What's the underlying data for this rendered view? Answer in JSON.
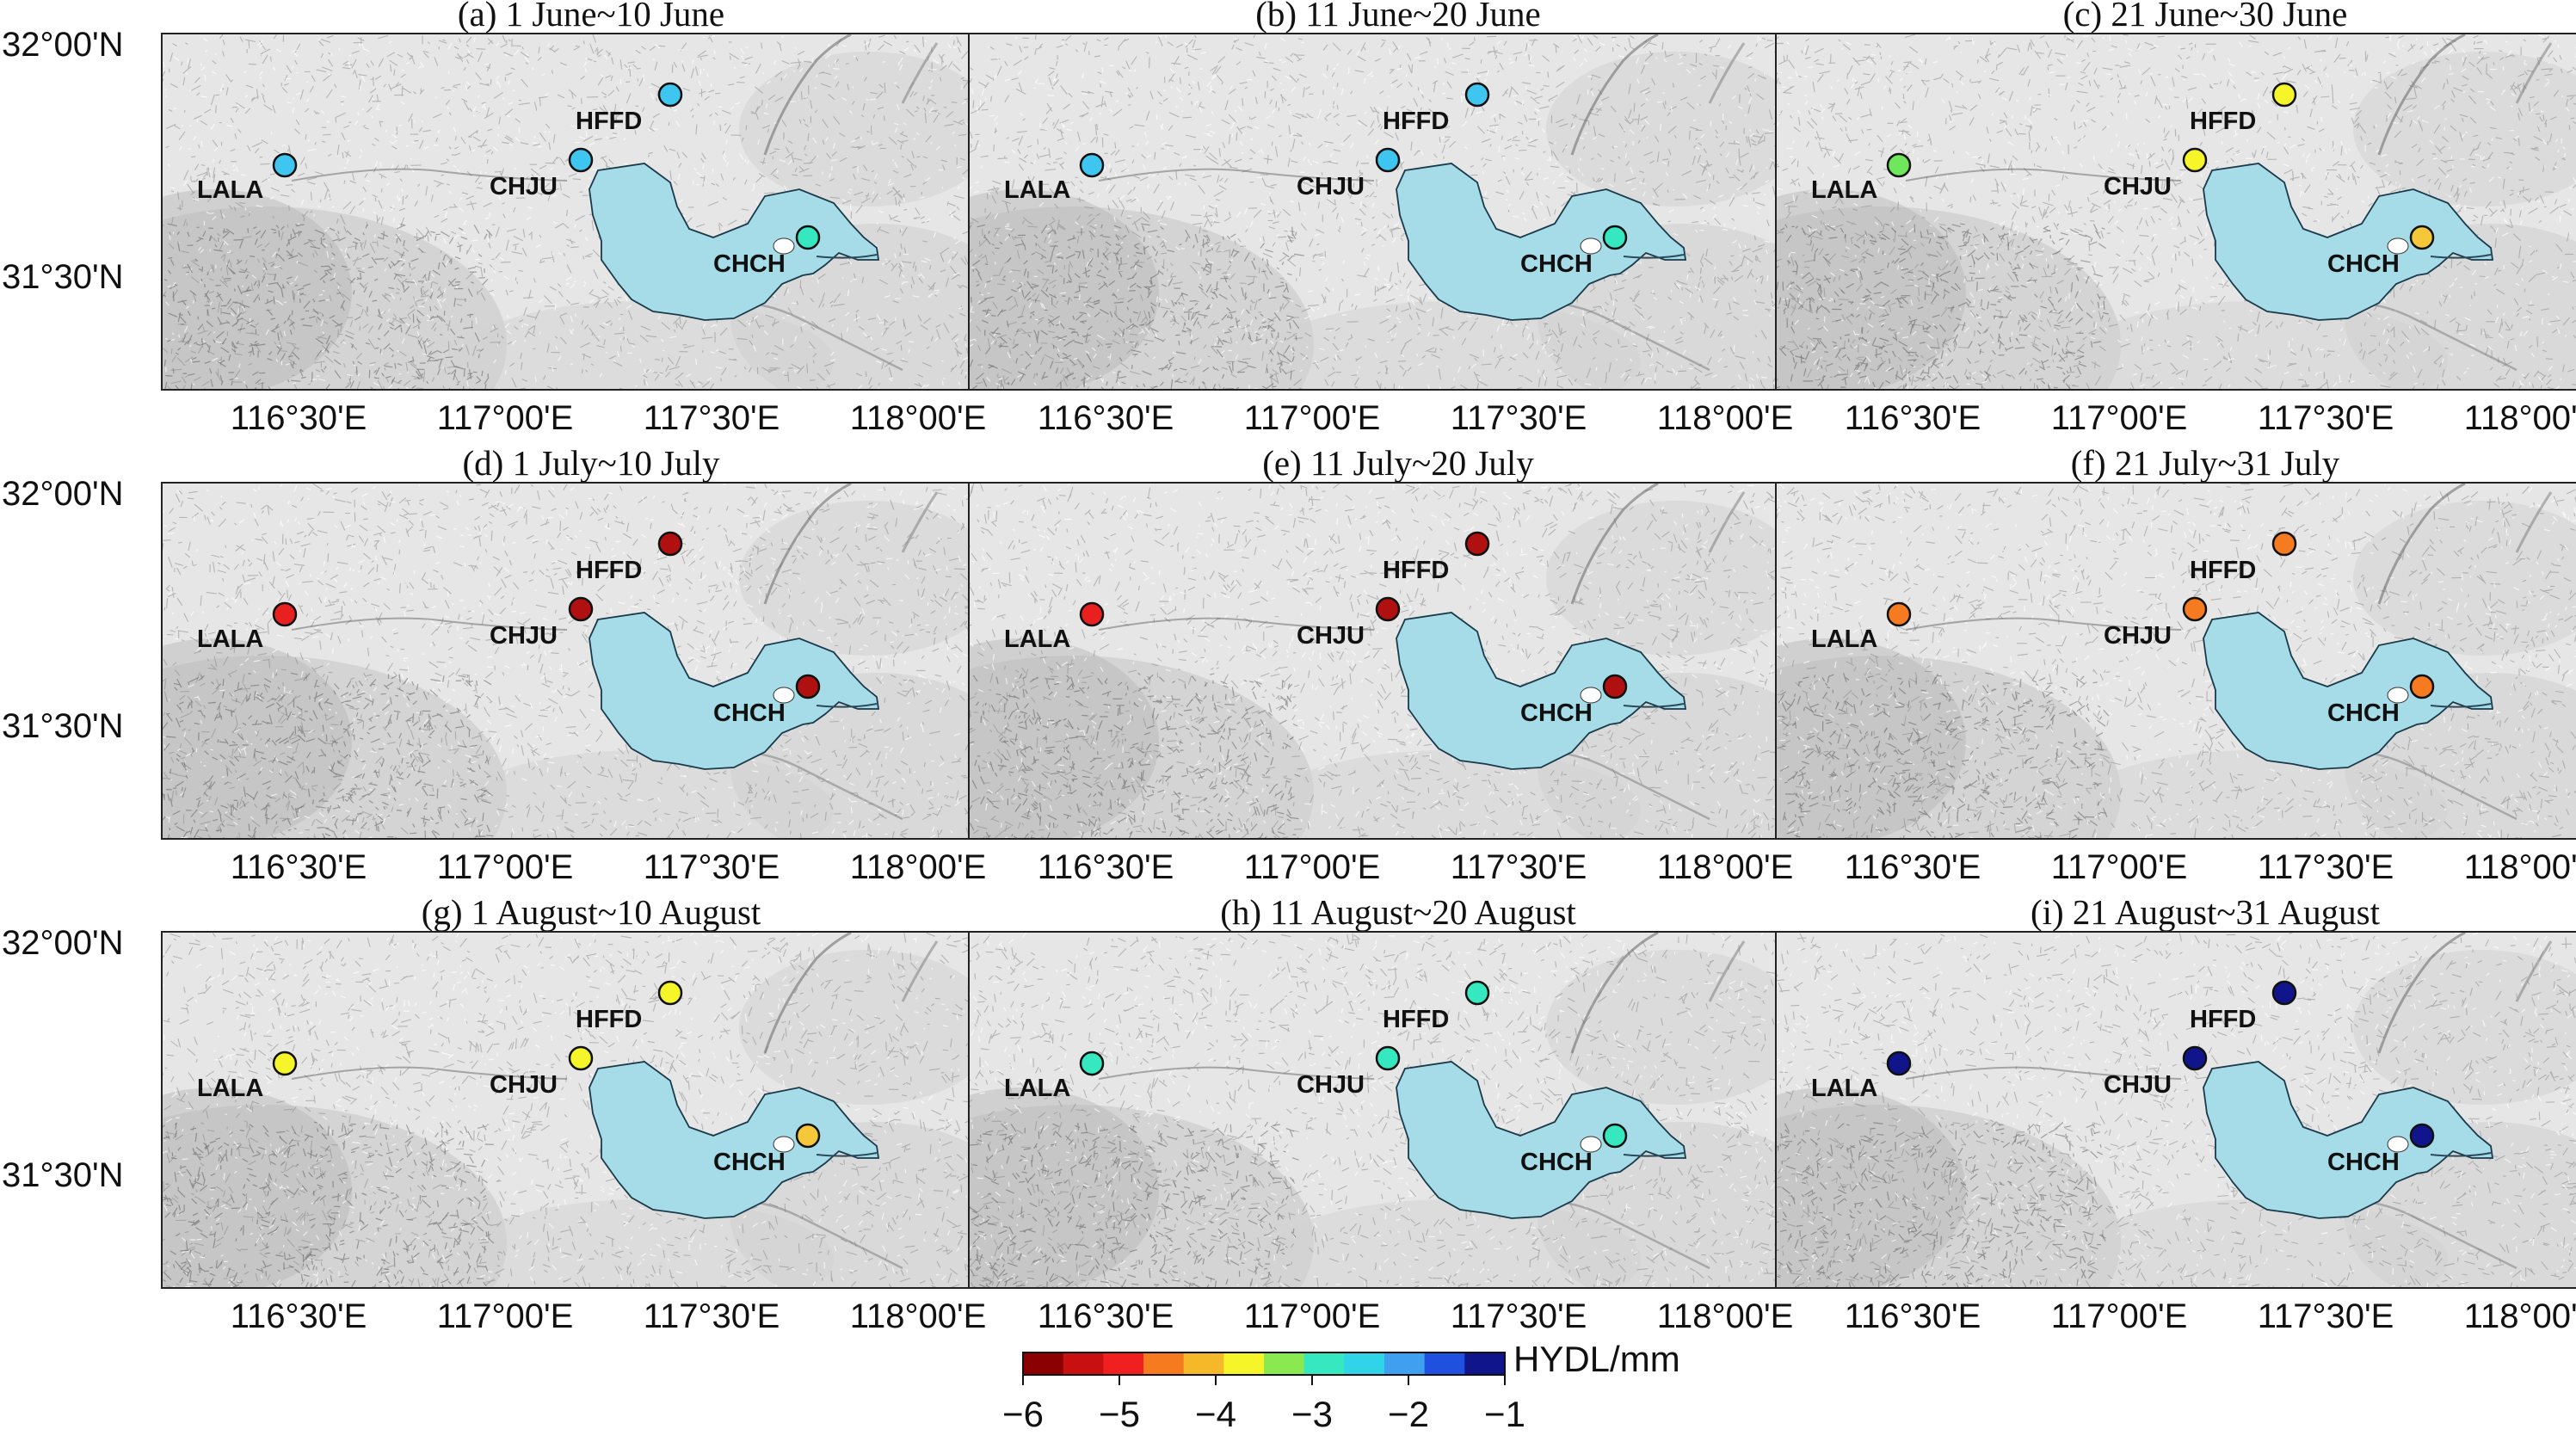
{
  "figure": {
    "panels": [
      {
        "title": "(a) 1 June~10 June",
        "colors": {
          "HFFD": "#3fc6f0",
          "LALA": "#3fc6f0",
          "CHJU": "#3fc6f0",
          "CHCH": "#35e8c0"
        }
      },
      {
        "title": "(b) 11 June~20 June",
        "colors": {
          "HFFD": "#3fc6f0",
          "LALA": "#3fc6f0",
          "CHJU": "#3fc6f0",
          "CHCH": "#35e8c0"
        }
      },
      {
        "title": "(c) 21 June~30 June",
        "colors": {
          "HFFD": "#f5f52a",
          "LALA": "#6ee85a",
          "CHJU": "#f5f52a",
          "CHCH": "#f4c838"
        }
      },
      {
        "title": "(d) 1 July~10 July",
        "colors": {
          "HFFD": "#b01010",
          "LALA": "#e82020",
          "CHJU": "#b01010",
          "CHCH": "#b01010"
        }
      },
      {
        "title": "(e) 11 July~20 July",
        "colors": {
          "HFFD": "#b01010",
          "LALA": "#e82020",
          "CHJU": "#b01010",
          "CHCH": "#b01010"
        }
      },
      {
        "title": "(f) 21 July~31 July",
        "colors": {
          "HFFD": "#f57a20",
          "LALA": "#f57a20",
          "CHJU": "#f57a20",
          "CHCH": "#f57a20"
        }
      },
      {
        "title": "(g) 1 August~10 August",
        "colors": {
          "HFFD": "#f5f52a",
          "LALA": "#f5f52a",
          "CHJU": "#f5f52a",
          "CHCH": "#f4c838"
        }
      },
      {
        "title": "(h) 11 August~20 August",
        "colors": {
          "HFFD": "#35e8c0",
          "LALA": "#35e8c0",
          "CHJU": "#35e8c0",
          "CHCH": "#35e8c0"
        }
      },
      {
        "title": "(i) 21 August~31 August",
        "colors": {
          "HFFD": "#10158c",
          "LALA": "#10158c",
          "CHJU": "#10158c",
          "CHCH": "#10158c"
        }
      }
    ],
    "stations": [
      {
        "id": "HFFD",
        "label": "HFFD"
      },
      {
        "id": "LALA",
        "label": "LALA"
      },
      {
        "id": "CHJU",
        "label": "CHJU"
      },
      {
        "id": "CHCH",
        "label": "CHCH"
      }
    ],
    "y_ticks": [
      "32°00'N",
      "31°30'N"
    ],
    "x_ticks": [
      "116°30'E",
      "117°00'E",
      "117°30'E",
      "118°00'E"
    ],
    "lake_color": "#a6dce8",
    "colorbar": {
      "title": "HYDL/mm",
      "ticks": [
        "−6",
        "−5",
        "−4",
        "−3",
        "−2",
        "−1"
      ],
      "colors": [
        "#8b0000",
        "#c81010",
        "#f02020",
        "#f57a20",
        "#f5b828",
        "#f5f52a",
        "#8ae850",
        "#35e8c0",
        "#30d4e8",
        "#3fa0f0",
        "#2050e0",
        "#10158c"
      ]
    }
  }
}
